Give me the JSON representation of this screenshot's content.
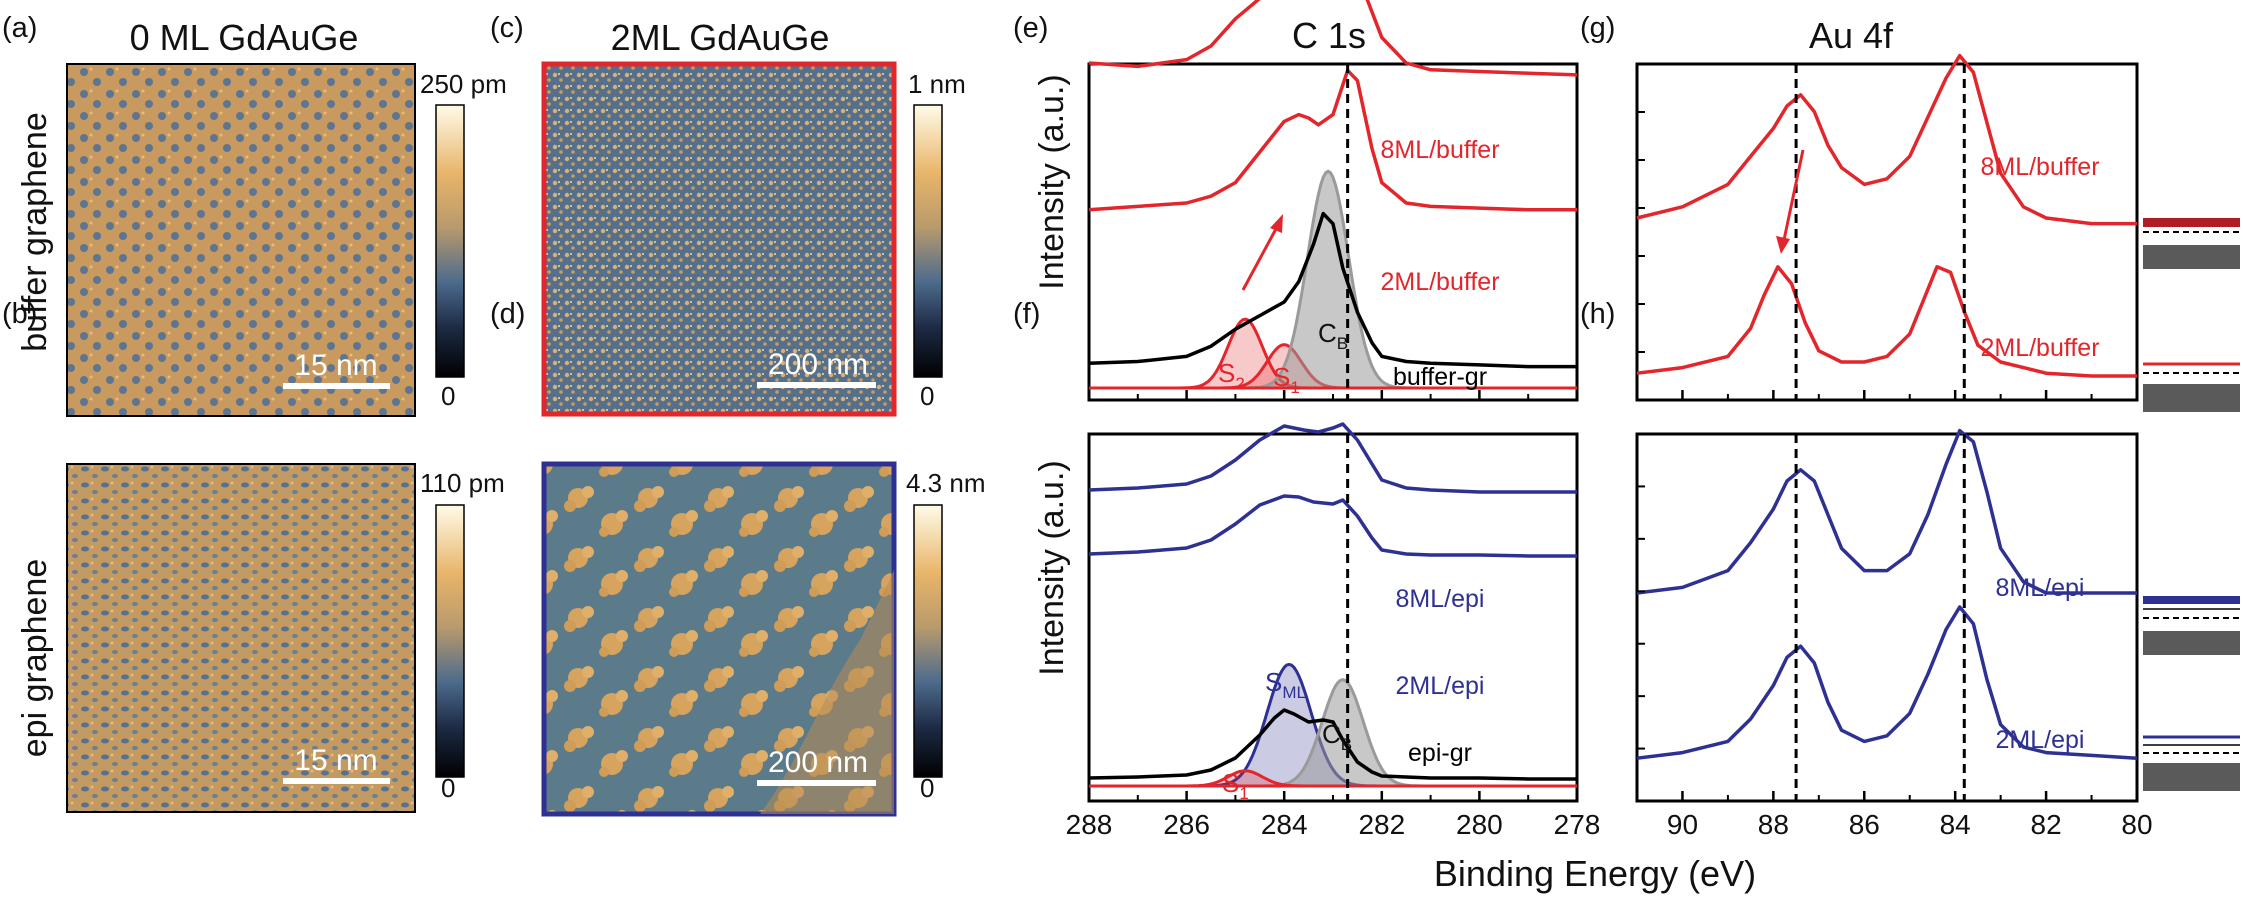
{
  "panel_letters": {
    "a": "(a)",
    "b": "(b)",
    "c": "(c)",
    "d": "(d)",
    "e": "(e)",
    "f": "(f)",
    "g": "(g)",
    "h": "(h)"
  },
  "stm": {
    "col1_title": "0 ML GdAuGe",
    "col2_title": "2ML GdAuGe",
    "row1_label": "buffer graphene",
    "row2_label": "epi graphene",
    "images": {
      "a": {
        "scale_bar": "15 nm",
        "cbar_max": "250 pm",
        "cbar_min": "0"
      },
      "b": {
        "scale_bar": "15 nm",
        "cbar_max": "110 pm",
        "cbar_min": "0"
      },
      "c": {
        "scale_bar": "200 nm",
        "cbar_max": "1 nm",
        "cbar_min": "0"
      },
      "d": {
        "scale_bar": "200 nm",
        "cbar_max": "4.3 nm",
        "cbar_min": "0"
      }
    },
    "colors": {
      "c_frame": "#e3262b",
      "d_frame": "#2e3192",
      "afm_gold": "#d9a55c",
      "afm_blue": "#4d6b8c"
    }
  },
  "xps": {
    "c1s_title": "C 1s",
    "au4f_title": "Au 4f",
    "ylabel": "Intensity (a.u.)",
    "xlabel": "Binding Energy (eV)",
    "components": {
      "s2": "S",
      "s2_sub": "2",
      "s1": "S",
      "s1_sub": "1",
      "cb": "C",
      "cb_sub": "B",
      "sml": "S",
      "sml_sub": "ML"
    },
    "colors": {
      "red": "#e3262b",
      "blue": "#2e3192",
      "black": "#000000",
      "gray": "#9a9a9a",
      "band": "#5a5a5a"
    }
  },
  "chart_data": [
    {
      "type": "line",
      "panel": "(e)",
      "title": "C 1s",
      "xlabel": "",
      "ylabel": "Intensity (a.u.)",
      "xlim": [
        288,
        278
      ],
      "xticks": [
        288,
        286,
        284,
        282,
        280,
        278
      ],
      "reference_line_x": 282.7,
      "series": [
        {
          "name": "8ML/buffer",
          "color": "#e3262b",
          "x": [
            288,
            287,
            286,
            285.5,
            285,
            284.5,
            284,
            283.5,
            283.2,
            283,
            282.8,
            282.6,
            282.4,
            282.2,
            282,
            281.5,
            281,
            280,
            279,
            278
          ],
          "y": [
            0.1,
            0.08,
            0.12,
            0.2,
            0.36,
            0.48,
            0.56,
            0.55,
            0.52,
            0.53,
            0.62,
            0.64,
            0.55,
            0.4,
            0.25,
            0.1,
            0.06,
            0.05,
            0.04,
            0.03
          ]
        },
        {
          "name": "2ML/buffer",
          "color": "#e3262b",
          "x": [
            288,
            287,
            286,
            285.5,
            285,
            284.5,
            284,
            283.7,
            283.5,
            283.3,
            283,
            282.7,
            282.5,
            282.2,
            282,
            281.5,
            281,
            280,
            279,
            278
          ],
          "y": [
            0.06,
            0.08,
            0.1,
            0.14,
            0.22,
            0.4,
            0.58,
            0.62,
            0.6,
            0.56,
            0.62,
            0.88,
            0.82,
            0.42,
            0.22,
            0.1,
            0.08,
            0.07,
            0.06,
            0.06
          ]
        },
        {
          "name": "buffer-gr",
          "color": "#000000",
          "x": [
            288,
            287,
            286,
            285.5,
            285,
            284.5,
            284,
            283.7,
            283.4,
            283.2,
            283,
            282.8,
            282.5,
            282.2,
            282,
            281.5,
            281,
            280,
            279,
            278
          ],
          "y": [
            0.04,
            0.05,
            0.08,
            0.14,
            0.24,
            0.32,
            0.4,
            0.52,
            0.74,
            0.92,
            0.86,
            0.6,
            0.34,
            0.16,
            0.08,
            0.05,
            0.04,
            0.03,
            0.02,
            0.02
          ]
        }
      ],
      "components": [
        {
          "name": "S2",
          "center": 284.8,
          "height": 0.27,
          "color": "#e3262b"
        },
        {
          "name": "S1",
          "center": 284.0,
          "height": 0.17,
          "color": "#e3262b"
        },
        {
          "name": "CB",
          "center": 283.1,
          "height": 0.85,
          "color": "#9a9a9a"
        }
      ]
    },
    {
      "type": "line",
      "panel": "(f)",
      "title": "",
      "xlabel": "Binding Energy (eV)",
      "ylabel": "Intensity (a.u.)",
      "xlim": [
        288,
        278
      ],
      "xticks": [
        288,
        286,
        284,
        282,
        280,
        278
      ],
      "reference_line_x": 282.7,
      "series": [
        {
          "name": "8ML/epi",
          "color": "#2e3192",
          "x": [
            288,
            287,
            286,
            285.5,
            285,
            284.5,
            284,
            283.6,
            283.3,
            283,
            282.8,
            282.5,
            282.2,
            282,
            281.5,
            281,
            280,
            279,
            278
          ],
          "y": [
            0.1,
            0.12,
            0.16,
            0.24,
            0.4,
            0.6,
            0.74,
            0.7,
            0.68,
            0.72,
            0.76,
            0.6,
            0.36,
            0.2,
            0.12,
            0.1,
            0.08,
            0.08,
            0.08
          ]
        },
        {
          "name": "2ML/epi",
          "color": "#2e3192",
          "x": [
            288,
            287,
            286,
            285.5,
            285,
            284.5,
            284,
            283.7,
            283.4,
            283,
            282.8,
            282.5,
            282.2,
            282,
            281.5,
            281,
            280,
            279,
            278
          ],
          "y": [
            0.06,
            0.08,
            0.12,
            0.2,
            0.36,
            0.55,
            0.64,
            0.63,
            0.58,
            0.56,
            0.6,
            0.44,
            0.22,
            0.1,
            0.06,
            0.05,
            0.05,
            0.04,
            0.04
          ]
        },
        {
          "name": "epi-gr",
          "color": "#000000",
          "x": [
            288,
            287,
            286,
            285.5,
            285,
            284.5,
            284.2,
            284,
            283.8,
            283.5,
            283.2,
            283,
            282.8,
            282.5,
            282.2,
            282,
            281.5,
            281,
            280,
            279,
            278
          ],
          "y": [
            0.02,
            0.03,
            0.05,
            0.1,
            0.22,
            0.45,
            0.62,
            0.7,
            0.66,
            0.58,
            0.6,
            0.58,
            0.4,
            0.18,
            0.08,
            0.04,
            0.03,
            0.02,
            0.02,
            0.01,
            0.01
          ]
        }
      ],
      "components": [
        {
          "name": "SML",
          "center": 283.9,
          "height": 0.64,
          "color": "#2e3192"
        },
        {
          "name": "CB",
          "center": 282.8,
          "height": 0.56,
          "color": "#9a9a9a"
        },
        {
          "name": "S1",
          "center": 284.8,
          "height": 0.08,
          "color": "#e3262b"
        }
      ]
    },
    {
      "type": "line",
      "panel": "(g)",
      "title": "Au 4f",
      "xlabel": "",
      "ylabel": "",
      "xlim": [
        91,
        80
      ],
      "xticks": [
        90,
        88,
        86,
        84,
        82,
        80
      ],
      "reference_lines_x": [
        87.5,
        83.8
      ],
      "series": [
        {
          "name": "8ML/buffer",
          "color": "#e3262b",
          "x": [
            91,
            90,
            89,
            88.5,
            88,
            87.7,
            87.4,
            87.1,
            86.8,
            86.5,
            86,
            85.5,
            85,
            84.6,
            84.2,
            83.9,
            83.6,
            83.3,
            83,
            82.5,
            82,
            81,
            80
          ],
          "y": [
            0.4,
            0.44,
            0.52,
            0.62,
            0.72,
            0.8,
            0.84,
            0.78,
            0.66,
            0.58,
            0.52,
            0.54,
            0.62,
            0.76,
            0.9,
            0.98,
            0.92,
            0.74,
            0.56,
            0.44,
            0.4,
            0.38,
            0.38
          ]
        },
        {
          "name": "2ML/buffer",
          "color": "#e3262b",
          "x": [
            91,
            90,
            89,
            88.5,
            88.2,
            87.9,
            87.6,
            87.3,
            87,
            86.5,
            86,
            85.5,
            85,
            84.7,
            84.4,
            84.1,
            83.8,
            83.5,
            83,
            82.5,
            82,
            81,
            80
          ],
          "y": [
            0.06,
            0.08,
            0.12,
            0.22,
            0.34,
            0.44,
            0.38,
            0.24,
            0.14,
            0.1,
            0.1,
            0.12,
            0.2,
            0.32,
            0.44,
            0.42,
            0.28,
            0.16,
            0.1,
            0.08,
            0.06,
            0.05,
            0.05
          ]
        }
      ]
    },
    {
      "type": "line",
      "panel": "(h)",
      "title": "",
      "xlabel": "Binding Energy (eV)",
      "ylabel": "",
      "xlim": [
        91,
        80
      ],
      "xticks": [
        90,
        88,
        86,
        84,
        82,
        80
      ],
      "reference_lines_x": [
        87.5,
        83.8
      ],
      "series": [
        {
          "name": "8ML/epi",
          "color": "#2e3192",
          "x": [
            91,
            90,
            89,
            88.5,
            88,
            87.7,
            87.4,
            87.1,
            86.8,
            86.5,
            86,
            85.5,
            85,
            84.6,
            84.2,
            83.9,
            83.6,
            83.3,
            83,
            82.5,
            82,
            81,
            80
          ],
          "y": [
            0.4,
            0.42,
            0.48,
            0.58,
            0.7,
            0.8,
            0.84,
            0.8,
            0.68,
            0.56,
            0.48,
            0.48,
            0.54,
            0.68,
            0.86,
            0.98,
            0.94,
            0.76,
            0.56,
            0.44,
            0.4,
            0.4,
            0.4
          ]
        },
        {
          "name": "2ML/epi",
          "color": "#2e3192",
          "x": [
            91,
            90,
            89,
            88.5,
            88,
            87.7,
            87.4,
            87.1,
            86.8,
            86.5,
            86,
            85.5,
            85,
            84.6,
            84.2,
            83.9,
            83.6,
            83.3,
            83,
            82.5,
            82,
            81,
            80
          ],
          "y": [
            0.06,
            0.08,
            0.12,
            0.2,
            0.32,
            0.42,
            0.46,
            0.4,
            0.26,
            0.16,
            0.12,
            0.14,
            0.22,
            0.36,
            0.52,
            0.6,
            0.54,
            0.34,
            0.18,
            0.1,
            0.08,
            0.07,
            0.06
          ]
        }
      ]
    }
  ]
}
